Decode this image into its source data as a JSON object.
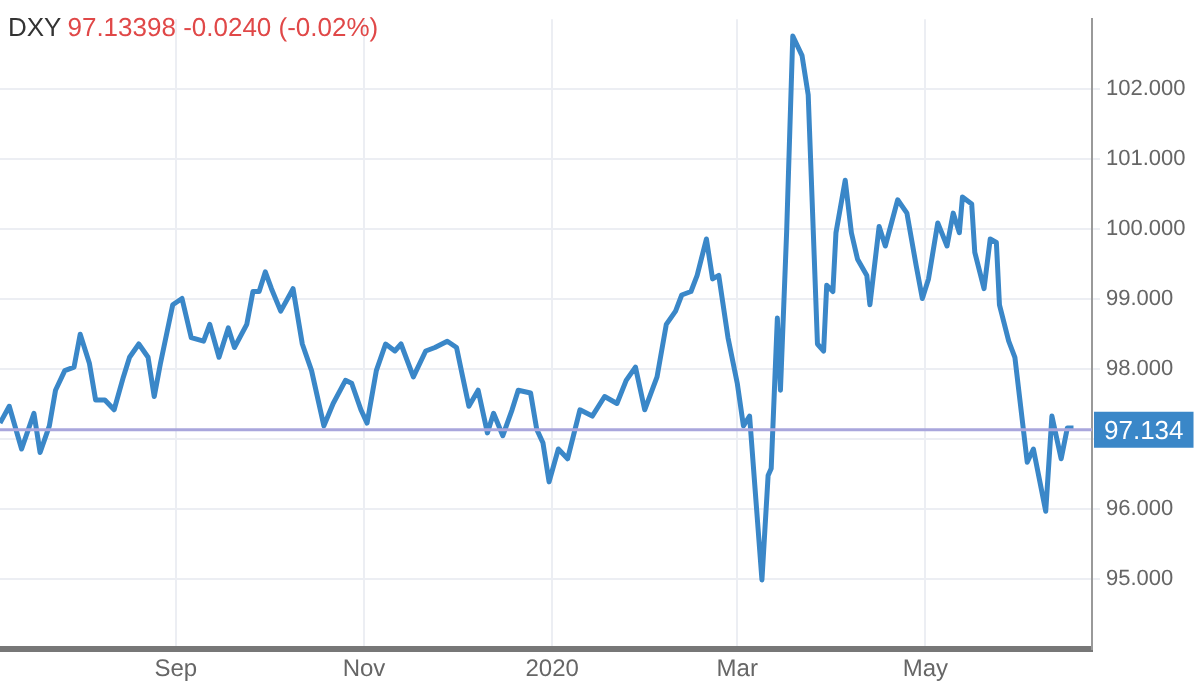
{
  "chart_data": {
    "type": "line",
    "title": "DXY",
    "subtitle": "97.13398  -0.0240 (-0.02%)",
    "x": [
      "2019-07-06",
      "2019-07-09",
      "2019-07-13",
      "2019-07-17",
      "2019-07-19",
      "2019-07-22",
      "2019-07-24",
      "2019-07-27",
      "2019-07-30",
      "2019-08-01",
      "2019-08-04",
      "2019-08-06",
      "2019-08-09",
      "2019-08-12",
      "2019-08-15",
      "2019-08-17",
      "2019-08-20",
      "2019-08-23",
      "2019-08-25",
      "2019-08-27",
      "2019-08-31",
      "2019-09-03",
      "2019-09-06",
      "2019-09-10",
      "2019-09-12",
      "2019-09-15",
      "2019-09-18",
      "2019-09-20",
      "2019-09-24",
      "2019-09-26",
      "2019-09-28",
      "2019-09-30",
      "2019-10-02",
      "2019-10-05",
      "2019-10-09",
      "2019-10-12",
      "2019-10-15",
      "2019-10-19",
      "2019-10-22",
      "2019-10-26",
      "2019-10-28",
      "2019-10-31",
      "2019-11-02",
      "2019-11-05",
      "2019-11-08",
      "2019-11-11",
      "2019-11-13",
      "2019-11-17",
      "2019-11-21",
      "2019-11-24",
      "2019-11-28",
      "2019-12-01",
      "2019-12-03",
      "2019-12-05",
      "2019-12-08",
      "2019-12-11",
      "2019-12-13",
      "2019-12-16",
      "2019-12-19",
      "2019-12-21",
      "2019-12-25",
      "2019-12-27",
      "2019-12-29",
      "2019-12-31",
      "2020-01-03",
      "2020-01-06",
      "2020-01-10",
      "2020-01-14",
      "2020-01-18",
      "2020-01-22",
      "2020-01-25",
      "2020-01-28",
      "2020-01-31",
      "2020-02-04",
      "2020-02-07",
      "2020-02-10",
      "2020-02-12",
      "2020-02-15",
      "2020-02-17",
      "2020-02-20",
      "2020-02-22",
      "2020-02-24",
      "2020-02-27",
      "2020-03-01",
      "2020-03-03",
      "2020-03-05",
      "2020-03-09",
      "2020-03-11",
      "2020-03-12",
      "2020-03-14",
      "2020-03-15",
      "2020-03-17",
      "2020-03-19",
      "2020-03-22",
      "2020-03-24",
      "2020-03-27",
      "2020-03-29",
      "2020-03-30",
      "2020-04-01",
      "2020-04-02",
      "2020-04-05",
      "2020-04-07",
      "2020-04-09",
      "2020-04-12",
      "2020-04-13",
      "2020-04-16",
      "2020-04-18",
      "2020-04-22",
      "2020-04-25",
      "2020-04-28",
      "2020-04-30",
      "2020-05-02",
      "2020-05-05",
      "2020-05-08",
      "2020-05-10",
      "2020-05-12",
      "2020-05-13",
      "2020-05-16",
      "2020-05-17",
      "2020-05-20",
      "2020-05-22",
      "2020-05-24",
      "2020-05-25",
      "2020-05-28",
      "2020-05-30",
      "2020-06-03",
      "2020-06-05",
      "2020-06-09",
      "2020-06-11",
      "2020-06-14",
      "2020-06-16",
      "2020-06-18"
    ],
    "series": [
      {
        "color": "#3a87c8",
        "values": [
          97.23,
          97.47,
          96.86,
          97.37,
          96.81,
          97.19,
          97.7,
          97.98,
          98.03,
          98.5,
          98.08,
          97.56,
          97.56,
          97.42,
          97.89,
          98.17,
          98.36,
          98.17,
          97.61,
          98.08,
          98.92,
          99.01,
          98.45,
          98.4,
          98.64,
          98.17,
          98.59,
          98.31,
          98.64,
          99.11,
          99.11,
          99.39,
          99.15,
          98.83,
          99.15,
          98.36,
          97.98,
          97.19,
          97.51,
          97.84,
          97.8,
          97.42,
          97.23,
          97.98,
          98.36,
          98.26,
          98.36,
          97.89,
          98.26,
          98.31,
          98.4,
          98.31,
          97.89,
          97.47,
          97.7,
          97.09,
          97.37,
          97.05,
          97.42,
          97.7,
          97.66,
          97.14,
          96.95,
          96.39,
          96.86,
          96.72,
          97.42,
          97.33,
          97.61,
          97.51,
          97.84,
          98.03,
          97.42,
          97.89,
          98.64,
          98.83,
          99.06,
          99.11,
          99.34,
          99.86,
          99.29,
          99.34,
          98.45,
          97.8,
          97.19,
          97.33,
          94.99,
          96.48,
          96.58,
          98.73,
          97.7,
          99.95,
          102.76,
          102.48,
          101.92,
          98.36,
          98.26,
          99.2,
          99.11,
          99.95,
          100.7,
          99.95,
          99.57,
          99.34,
          98.92,
          100.04,
          99.76,
          100.42,
          100.23,
          99.48,
          99.01,
          99.29,
          100.09,
          99.76,
          100.23,
          99.95,
          100.46,
          100.36,
          99.67,
          99.15,
          99.86,
          99.81,
          98.92,
          98.4,
          98.17,
          96.67,
          96.86,
          95.97,
          97.33,
          96.72,
          97.16,
          97.16
        ]
      }
    ],
    "xlim": [
      "2019-07-06",
      "2020-06-24"
    ],
    "xticks": [
      {
        "value": "2019-09-01",
        "label": "Sep"
      },
      {
        "value": "2019-11-01",
        "label": "Nov"
      },
      {
        "value": "2020-01-01",
        "label": "2020"
      },
      {
        "value": "2020-03-01",
        "label": "Mar"
      },
      {
        "value": "2020-05-01",
        "label": "May"
      }
    ],
    "ylim": [
      94,
      103
    ],
    "yticks": [
      {
        "value": 95,
        "label": "95.000"
      },
      {
        "value": 96,
        "label": "96.000"
      },
      {
        "value": 97,
        "label": null
      },
      {
        "value": 98,
        "label": "98.000"
      },
      {
        "value": 99,
        "label": "99.000"
      },
      {
        "value": 100,
        "label": "100.000"
      },
      {
        "value": 101,
        "label": "101.000"
      },
      {
        "value": 102,
        "label": "102.000"
      }
    ],
    "ref_lines": [
      {
        "axis": "y",
        "value": 97.134,
        "label": "97.134",
        "color": "#a9a6dc"
      }
    ],
    "grid": true,
    "legend": false,
    "marker": "none",
    "line_style": "solid"
  }
}
